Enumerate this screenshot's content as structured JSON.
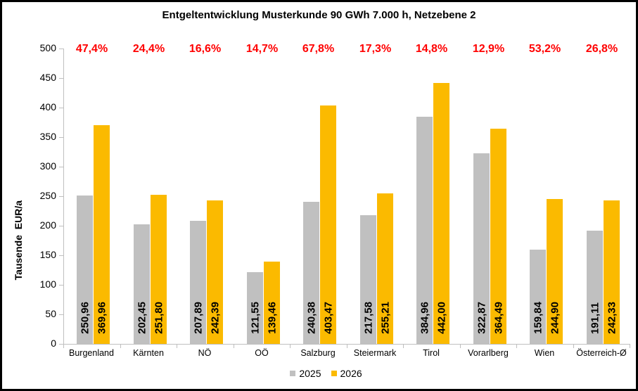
{
  "chart_data": {
    "type": "bar",
    "title": "Entgeltentwicklung Musterkunde 90 GWh 7.000 h, Netzebene 2",
    "ylabel": "Tausende  EUR/a",
    "xlabel": "",
    "ylim": [
      0,
      500
    ],
    "yticks": [
      0,
      50,
      100,
      150,
      200,
      250,
      300,
      350,
      400,
      450,
      500
    ],
    "grid": false,
    "legend_position": "bottom",
    "categories": [
      "Burgenland",
      "Kärnten",
      "NÖ",
      "OÖ",
      "Salzburg",
      "Steiermark",
      "Tirol",
      "Vorarlberg",
      "Wien",
      "Österreich-Ø"
    ],
    "series": [
      {
        "name": "2025",
        "color": "#C0C0C0",
        "values": [
          250.96,
          202.45,
          207.89,
          121.55,
          240.38,
          217.58,
          384.96,
          322.87,
          159.84,
          191.11
        ],
        "value_labels": [
          "250,96",
          "202,45",
          "207,89",
          "121,55",
          "240,38",
          "217,58",
          "384,96",
          "322,87",
          "159,84",
          "191,11"
        ]
      },
      {
        "name": "2026",
        "color": "#FBBA00",
        "values": [
          369.96,
          251.8,
          242.39,
          139.46,
          403.47,
          255.21,
          442.0,
          364.49,
          244.9,
          242.33
        ],
        "value_labels": [
          "369,96",
          "251,80",
          "242,39",
          "139,46",
          "403,47",
          "255,21",
          "442,00",
          "364,49",
          "244,90",
          "242,33"
        ]
      }
    ],
    "percent_change": [
      "47,4%",
      "24,4%",
      "16,6%",
      "14,7%",
      "67,8%",
      "17,3%",
      "14,8%",
      "12,9%",
      "53,2%",
      "26,8%"
    ],
    "colors": {
      "percent_text": "#FF0000",
      "axis": "#BFBFBF",
      "text": "#000000",
      "background": "#FFFFFF"
    }
  }
}
